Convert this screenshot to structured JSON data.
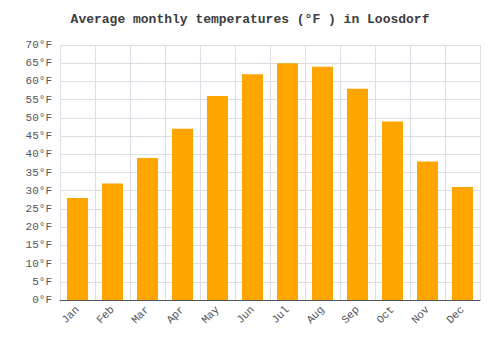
{
  "chart_data": {
    "type": "bar",
    "title": "Average monthly temperatures (°F ) in Loosdorf",
    "categories": [
      "Jan",
      "Feb",
      "Mar",
      "Apr",
      "May",
      "Jun",
      "Jul",
      "Aug",
      "Sep",
      "Oct",
      "Nov",
      "Dec"
    ],
    "values": [
      28,
      32,
      39,
      47,
      56,
      62,
      65,
      64,
      58,
      49,
      38,
      31
    ],
    "color": "#FFA500",
    "ylim": [
      0,
      70
    ],
    "yticks": [
      {
        "value": 0,
        "label": "0°F"
      },
      {
        "value": 5,
        "label": "5°F"
      },
      {
        "value": 10,
        "label": "10°F"
      },
      {
        "value": 15,
        "label": "15°F"
      },
      {
        "value": 20,
        "label": "20°F"
      },
      {
        "value": 25,
        "label": "25°F"
      },
      {
        "value": 30,
        "label": "30°F"
      },
      {
        "value": 35,
        "label": "35°F"
      },
      {
        "value": 40,
        "label": "40°F"
      },
      {
        "value": 45,
        "label": "45°F"
      },
      {
        "value": 50,
        "label": "50°F"
      },
      {
        "value": 55,
        "label": "55°F"
      },
      {
        "value": 60,
        "label": "60°F"
      },
      {
        "value": 65,
        "label": "65°F"
      },
      {
        "value": 70,
        "label": "70°F"
      }
    ],
    "grid": true
  }
}
